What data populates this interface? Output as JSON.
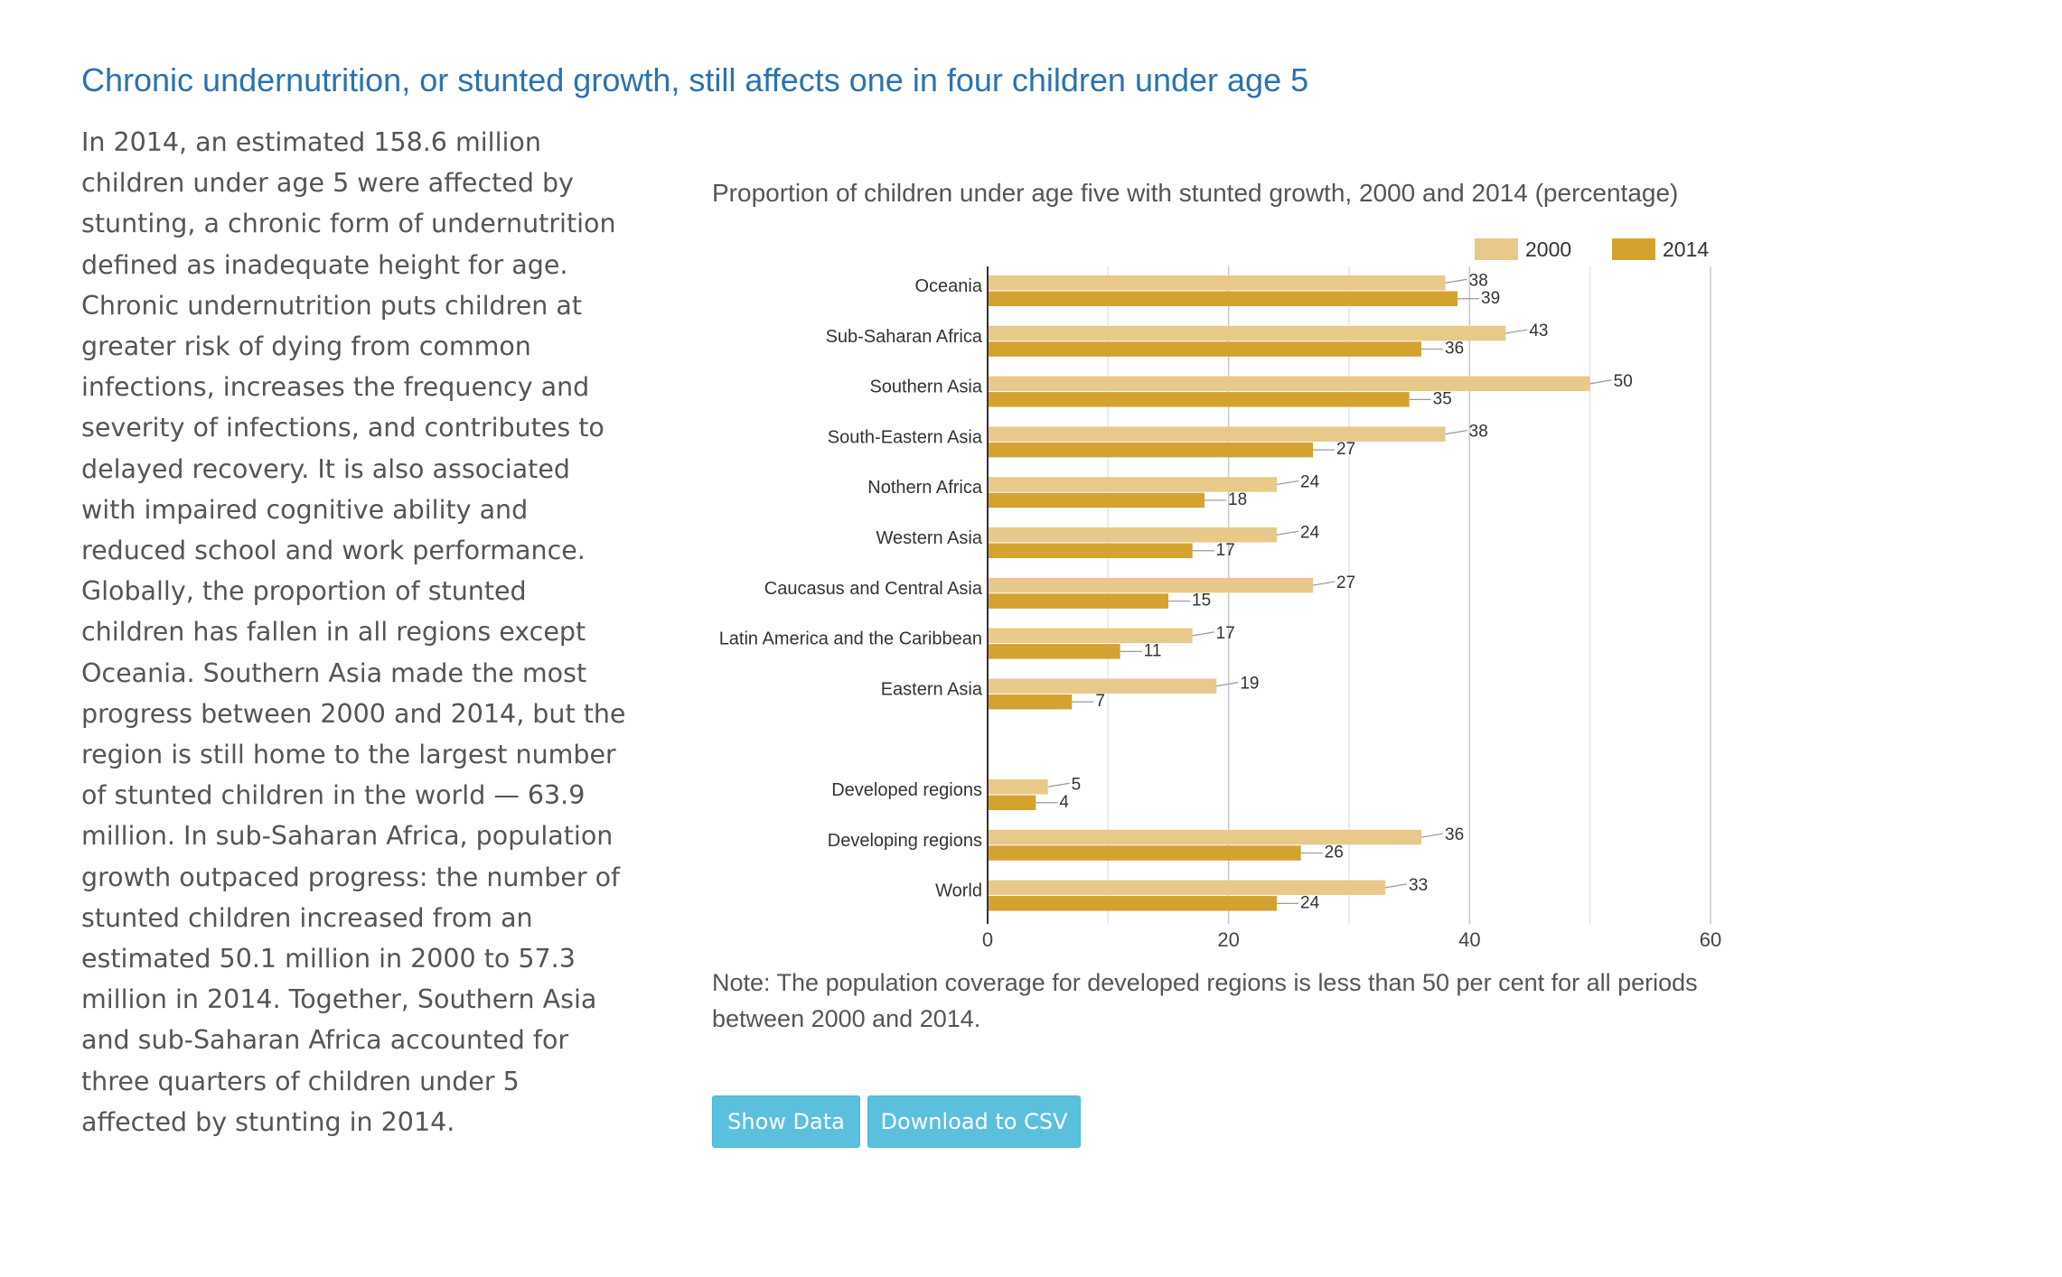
{
  "page": {
    "title": "Chronic undernutrition, or stunted growth, still affects one in four children under age 5",
    "body": "In 2014, an estimated 158.6 million children under age 5 were affected by stunting, a chronic form of undernutrition defined as inadequate height for age. Chronic undernutrition puts children at greater risk of dying from common infections, increases the frequency and severity of infections, and contributes to delayed recovery. It is also associated with impaired cognitive ability and reduced school and work performance. Globally, the proportion of stunted children has fallen in all regions except Oceania. Southern Asia made the most progress between 2000 and 2014, but the region is still home to the largest number of stunted children in the world — 63.9 million. In sub-Saharan Africa, population growth outpaced progress: the number of stunted children increased from an estimated 50.1 million in 2000 to 57.3 million in 2014. Together, Southern Asia and sub-Saharan Africa accounted for three quarters of children under 5 affected by stunting in 2014."
  },
  "note": "Note: The population coverage for developed regions is less than 50 per cent for all periods between 2000 and 2014.",
  "buttons": {
    "show_data": "Show Data",
    "download_csv": "Download to CSV"
  },
  "colors": {
    "series_2000": "#e8c98a",
    "series_2014": "#d4a22f",
    "grid": "#cccccc",
    "axis": "#333333",
    "text": "#555555",
    "title": "#2a72b0",
    "button": "#5bc0de"
  },
  "chart_data": {
    "type": "bar",
    "orientation": "horizontal",
    "title": "Proportion of children under age five with stunted growth, 2000 and 2014 (percentage)",
    "categories": [
      "Oceania",
      "Sub-Saharan Africa",
      "Southern Asia",
      "South-Eastern Asia",
      "Nothern Africa",
      "Western Asia",
      "Caucasus and Central Asia",
      "Latin America and the Caribbean",
      "Eastern Asia",
      "",
      "Developed regions",
      "Developing regions",
      "World"
    ],
    "series": [
      {
        "name": "2000",
        "values": [
          38,
          43,
          50,
          38,
          24,
          24,
          27,
          17,
          19,
          null,
          5,
          36,
          33
        ]
      },
      {
        "name": "2014",
        "values": [
          39,
          36,
          35,
          27,
          18,
          17,
          15,
          11,
          7,
          null,
          4,
          26,
          24
        ]
      }
    ],
    "xlim": [
      0,
      60
    ],
    "xticks": [
      0,
      20,
      40,
      60
    ],
    "grid": true,
    "legend_position": "top-right"
  }
}
